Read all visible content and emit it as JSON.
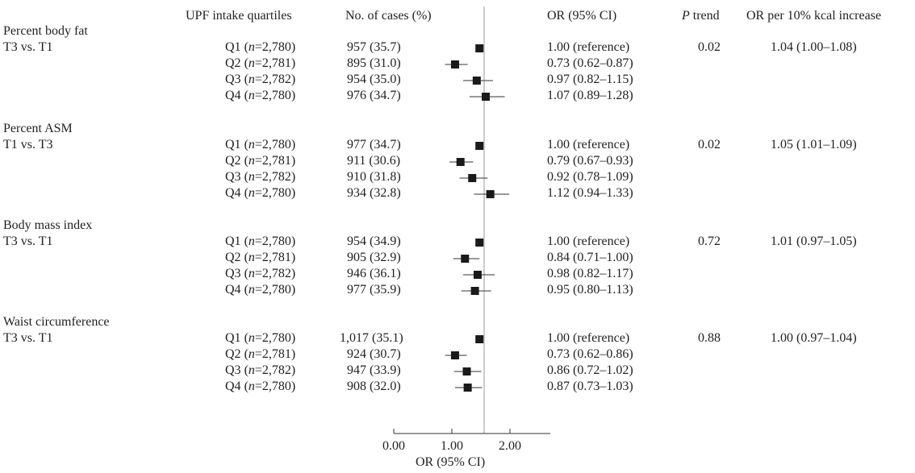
{
  "headers": {
    "quartiles": "UPF intake quartiles",
    "cases": "No. of cases (%)",
    "or": "OR (95% CI)",
    "ptrend_p": "P",
    "ptrend_rest": " trend",
    "per10": "OR per 10% kcal increase"
  },
  "groups": [
    {
      "title": "Percent body fat",
      "comparison": "T3 vs. T1",
      "p_trend": "0.02",
      "or_per10": "1.04 (1.00–1.08)",
      "rows": [
        {
          "q": "Q1",
          "n": "2,780",
          "cases": "957 (35.7)",
          "or_text": "1.00 (reference)"
        },
        {
          "q": "Q2",
          "n": "2,781",
          "cases": "895 (31.0)",
          "or_text": "0.73 (0.62–0.87)"
        },
        {
          "q": "Q3",
          "n": "2,782",
          "cases": "954 (35.0)",
          "or_text": "0.97 (0.82–1.15)"
        },
        {
          "q": "Q4",
          "n": "2,780",
          "cases": "976 (34.7)",
          "or_text": "1.07 (0.89–1.28)"
        }
      ]
    },
    {
      "title": "Percent ASM",
      "comparison": "T1 vs. T3",
      "p_trend": "0.02",
      "or_per10": "1.05 (1.01–1.09)",
      "rows": [
        {
          "q": "Q1",
          "n": "2,780",
          "cases": "977 (34.7)",
          "or_text": "1.00 (reference)"
        },
        {
          "q": "Q2",
          "n": "2,781",
          "cases": "911 (30.6)",
          "or_text": "0.79 (0.67–0.93)"
        },
        {
          "q": "Q3",
          "n": "2,782",
          "cases": "910 (31.8)",
          "or_text": "0.92 (0.78–1.09)"
        },
        {
          "q": "Q4",
          "n": "2,780",
          "cases": "934 (32.8)",
          "or_text": "1.12 (0.94–1.33)"
        }
      ]
    },
    {
      "title": "Body mass index",
      "comparison": "T3 vs. T1",
      "p_trend": "0.72",
      "or_per10": "1.01 (0.97–1.05)",
      "rows": [
        {
          "q": "Q1",
          "n": "2,780",
          "cases": "954 (34.9)",
          "or_text": "1.00 (reference)"
        },
        {
          "q": "Q2",
          "n": "2,781",
          "cases": "905 (32.9)",
          "or_text": "0.84 (0.71–1.00)"
        },
        {
          "q": "Q3",
          "n": "2,782",
          "cases": "946 (36.1)",
          "or_text": "0.98 (0.82–1.17)"
        },
        {
          "q": "Q4",
          "n": "2,780",
          "cases": "977 (35.9)",
          "or_text": "0.95 (0.80–1.13)"
        }
      ]
    },
    {
      "title": "Waist circumference",
      "comparison": "T3 vs. T1",
      "p_trend": "0.88",
      "or_per10": "1.00 (0.97–1.04)",
      "rows": [
        {
          "q": "Q1",
          "n": "2,780",
          "cases": "1,017 (35.1)",
          "or_text": "1.00 (reference)"
        },
        {
          "q": "Q2",
          "n": "2,781",
          "cases": "924 (30.7)",
          "or_text": "0.73 (0.62–0.86)"
        },
        {
          "q": "Q3",
          "n": "2,782",
          "cases": "947 (33.9)",
          "or_text": "0.86 (0.72–1.02)"
        },
        {
          "q": "Q4",
          "n": "2,780",
          "cases": "908 (32.0)",
          "or_text": "0.87 (0.73–1.03)"
        }
      ]
    }
  ],
  "chart_data": {
    "type": "forest",
    "xlabel": "OR (95% CI)",
    "xticks": [
      "0.00",
      "1.00",
      "2.00"
    ],
    "xlim": [
      0,
      2.5
    ],
    "reference_line": 1.0,
    "series": [
      {
        "name": "Percent body fat",
        "points": [
          {
            "or": 1.0,
            "lo": 1.0,
            "hi": 1.0
          },
          {
            "or": 0.73,
            "lo": 0.62,
            "hi": 0.87
          },
          {
            "or": 0.97,
            "lo": 0.82,
            "hi": 1.15
          },
          {
            "or": 1.07,
            "lo": 0.89,
            "hi": 1.28
          }
        ]
      },
      {
        "name": "Percent ASM",
        "points": [
          {
            "or": 1.0,
            "lo": 1.0,
            "hi": 1.0
          },
          {
            "or": 0.79,
            "lo": 0.67,
            "hi": 0.93
          },
          {
            "or": 0.92,
            "lo": 0.78,
            "hi": 1.09
          },
          {
            "or": 1.12,
            "lo": 0.94,
            "hi": 1.33
          }
        ]
      },
      {
        "name": "Body mass index",
        "points": [
          {
            "or": 1.0,
            "lo": 1.0,
            "hi": 1.0
          },
          {
            "or": 0.84,
            "lo": 0.71,
            "hi": 1.0
          },
          {
            "or": 0.98,
            "lo": 0.82,
            "hi": 1.17
          },
          {
            "or": 0.95,
            "lo": 0.8,
            "hi": 1.13
          }
        ]
      },
      {
        "name": "Waist circumference",
        "points": [
          {
            "or": 1.0,
            "lo": 1.0,
            "hi": 1.0
          },
          {
            "or": 0.73,
            "lo": 0.62,
            "hi": 0.86
          },
          {
            "or": 0.86,
            "lo": 0.72,
            "hi": 1.02
          },
          {
            "or": 0.87,
            "lo": 0.73,
            "hi": 1.03
          }
        ]
      }
    ]
  }
}
